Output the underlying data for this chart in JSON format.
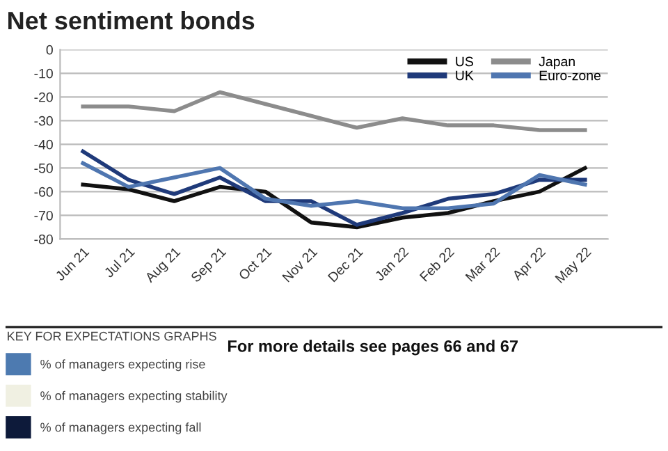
{
  "chart_data": {
    "type": "line",
    "title": "Net sentiment bonds",
    "categories": [
      "Jun 21",
      "Jul 21",
      "Aug 21",
      "Sep 21",
      "Oct 21",
      "Nov 21",
      "Dec 21",
      "Jan 22",
      "Feb 22",
      "Mar 22",
      "Apr 22",
      "May 22"
    ],
    "series": [
      {
        "name": "US",
        "color": "#111111",
        "values": [
          -57,
          -59,
          -64,
          -58,
          -60,
          -73,
          -75,
          -71,
          -69,
          -64,
          -60,
          -50
        ]
      },
      {
        "name": "UK",
        "color": "#1f3a7a",
        "values": [
          -43,
          -55,
          -61,
          -54,
          -64,
          -64,
          -74,
          -69,
          -63,
          -61,
          -55,
          -55
        ]
      },
      {
        "name": "Japan",
        "color": "#8c8c8c",
        "values": [
          -24,
          -24,
          -26,
          -18,
          -23,
          -28,
          -33,
          -29,
          -32,
          -32,
          -34,
          -34
        ]
      },
      {
        "name": "Euro-zone",
        "color": "#4f76b0",
        "values": [
          -48,
          -58,
          -54,
          -50,
          -63,
          -66,
          -64,
          -67,
          -67,
          -65,
          -53,
          -57
        ]
      }
    ],
    "ylim": [
      -80,
      0
    ],
    "yticks": [
      -80,
      -70,
      -60,
      -50,
      -40,
      -30,
      -20,
      -10,
      0
    ],
    "grid": "y",
    "legend": "top right",
    "marker": "none",
    "line_style": "solid",
    "annotations": [
      "KEY FOR EXPECTATIONS GRAPHS",
      "% of managers expecting rise",
      "% of managers expecting stability",
      "% of managers expecting fall",
      "For more details see pages 66 and 67"
    ]
  }
}
